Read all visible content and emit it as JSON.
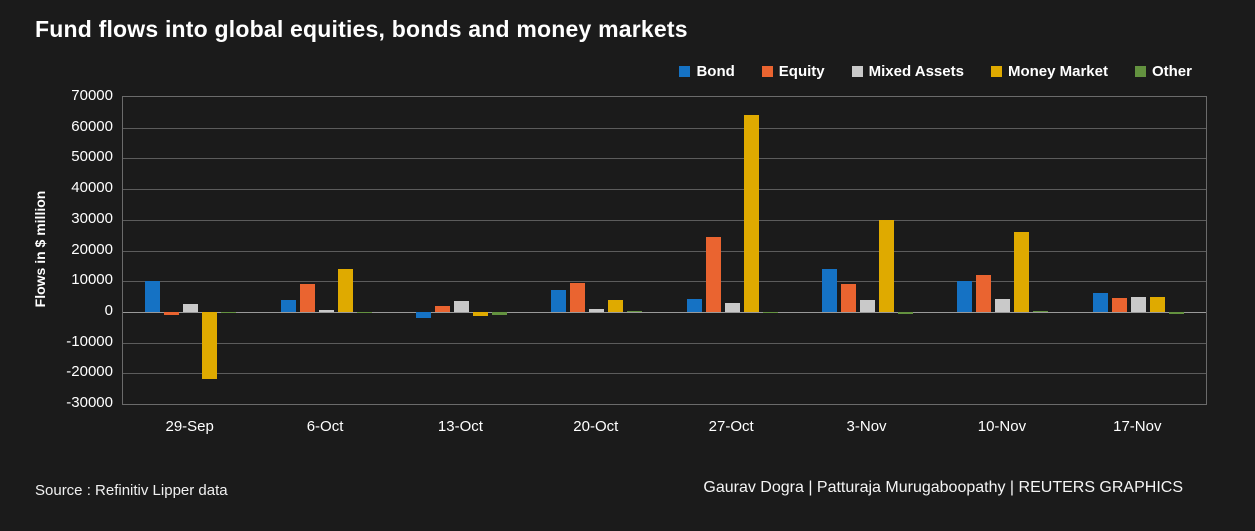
{
  "title": "Fund flows into global equities, bonds and money markets",
  "source": "Source : Refinitiv Lipper data",
  "credits": "Gaurav Dogra | Patturaja Murugaboopathy | REUTERS GRAPHICS",
  "colors": {
    "background": "#1b1b1b",
    "grid": "#5c5c5c",
    "zero_line": "#9a9a9a",
    "text": "#ffffff"
  },
  "chart_data": {
    "type": "bar",
    "title": "Fund flows into global equities, bonds and money markets",
    "xlabel": "",
    "ylabel": "Flows in $ million",
    "ylim": [
      -30000,
      70000
    ],
    "ytick_step": 10000,
    "grid": true,
    "legend_position": "top-right",
    "categories": [
      "29-Sep",
      "6-Oct",
      "13-Oct",
      "20-Oct",
      "27-Oct",
      "3-Nov",
      "10-Nov",
      "17-Nov"
    ],
    "series": [
      {
        "name": "Bond",
        "color": "#1572c4",
        "values": [
          10000,
          4000,
          -2000,
          7000,
          4200,
          14000,
          10000,
          6000
        ]
      },
      {
        "name": "Equity",
        "color": "#ea6430",
        "values": [
          -1000,
          9000,
          2000,
          9500,
          24500,
          9000,
          12000,
          4500
        ]
      },
      {
        "name": "Mixed Assets",
        "color": "#c9c9c9",
        "values": [
          2500,
          500,
          3500,
          1000,
          2800,
          4000,
          4200,
          5000
        ]
      },
      {
        "name": "Money Market",
        "color": "#dfaa00",
        "values": [
          -22000,
          14000,
          -1500,
          4000,
          64000,
          30000,
          26000,
          4800
        ]
      },
      {
        "name": "Other",
        "color": "#63923f",
        "values": [
          -300,
          -200,
          -1000,
          200,
          -500,
          -800,
          300,
          -600
        ]
      }
    ]
  }
}
